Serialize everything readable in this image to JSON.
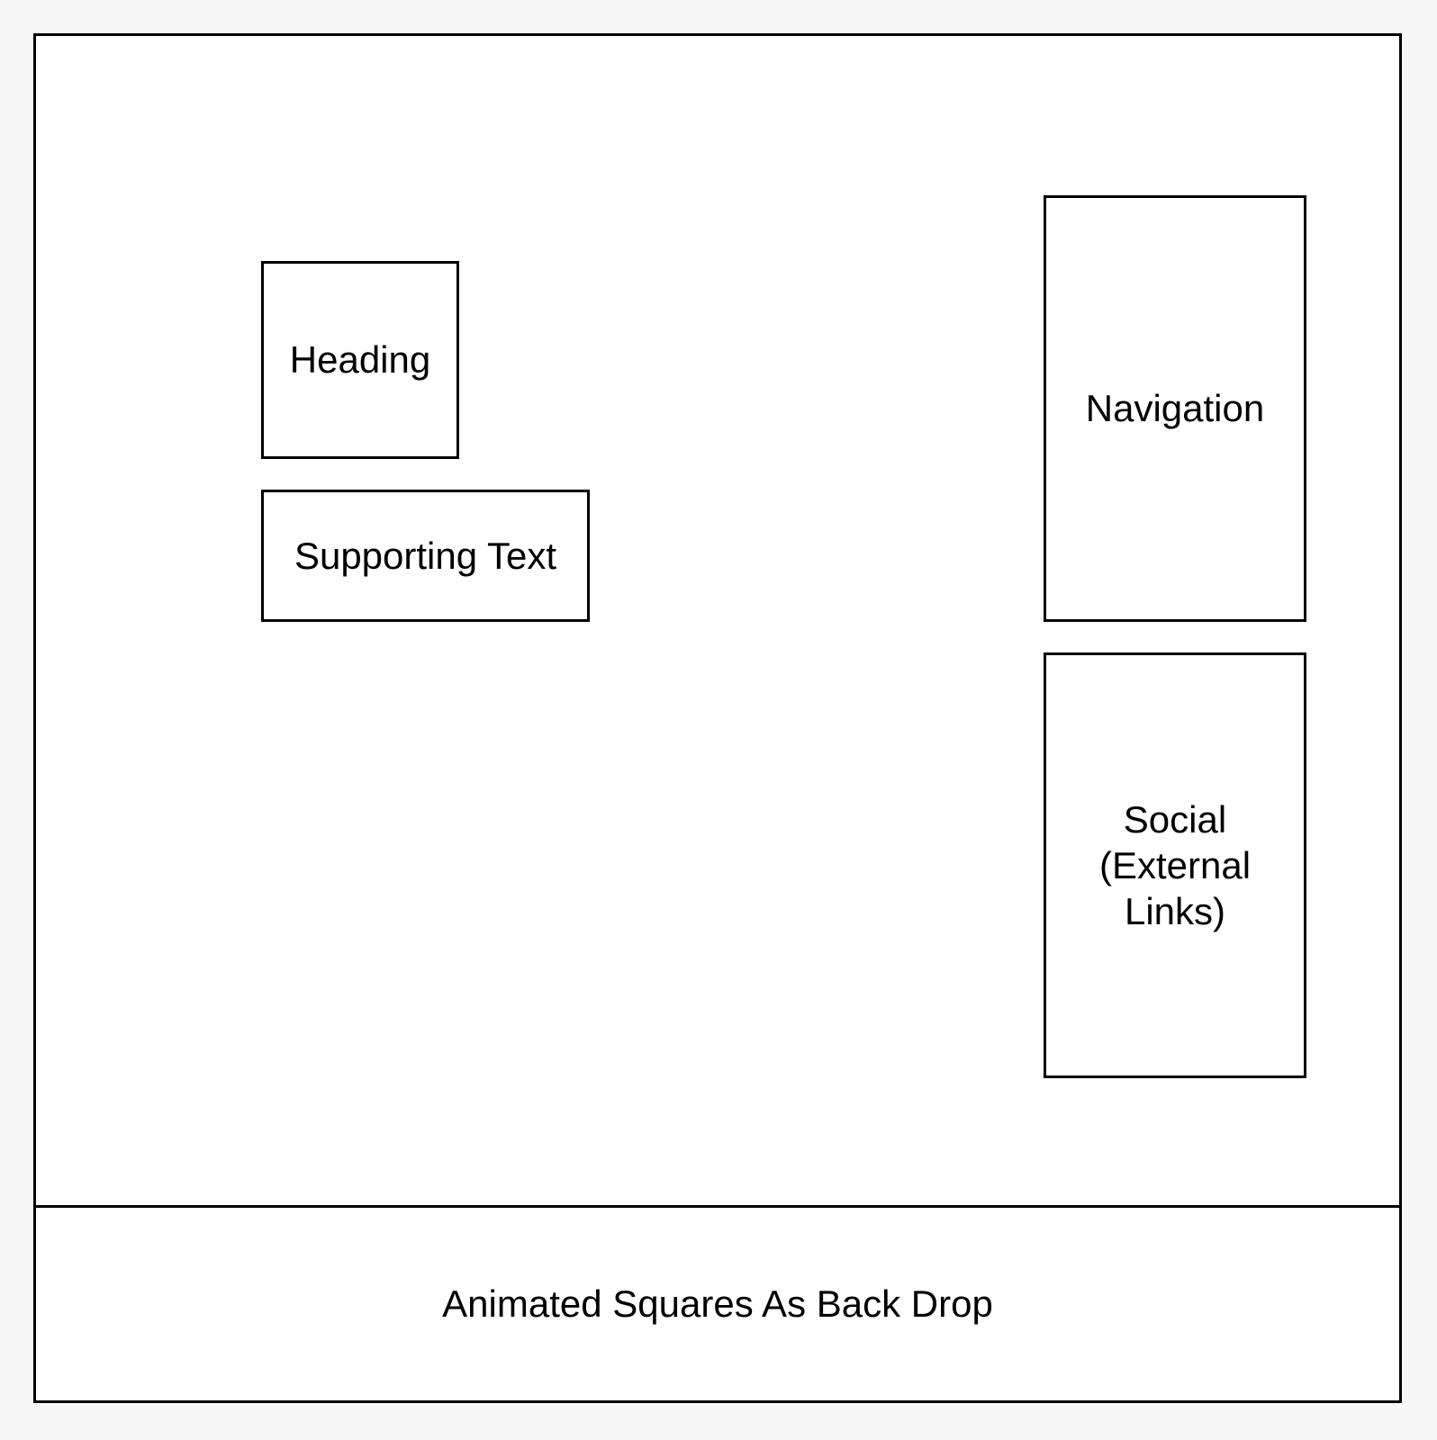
{
  "diagram": {
    "boxes": {
      "heading": "Heading",
      "supporting_text": "Supporting Text",
      "navigation": "Navigation",
      "social": "Social (External Links)"
    },
    "footer": {
      "label": "Animated Squares As Back Drop"
    }
  }
}
